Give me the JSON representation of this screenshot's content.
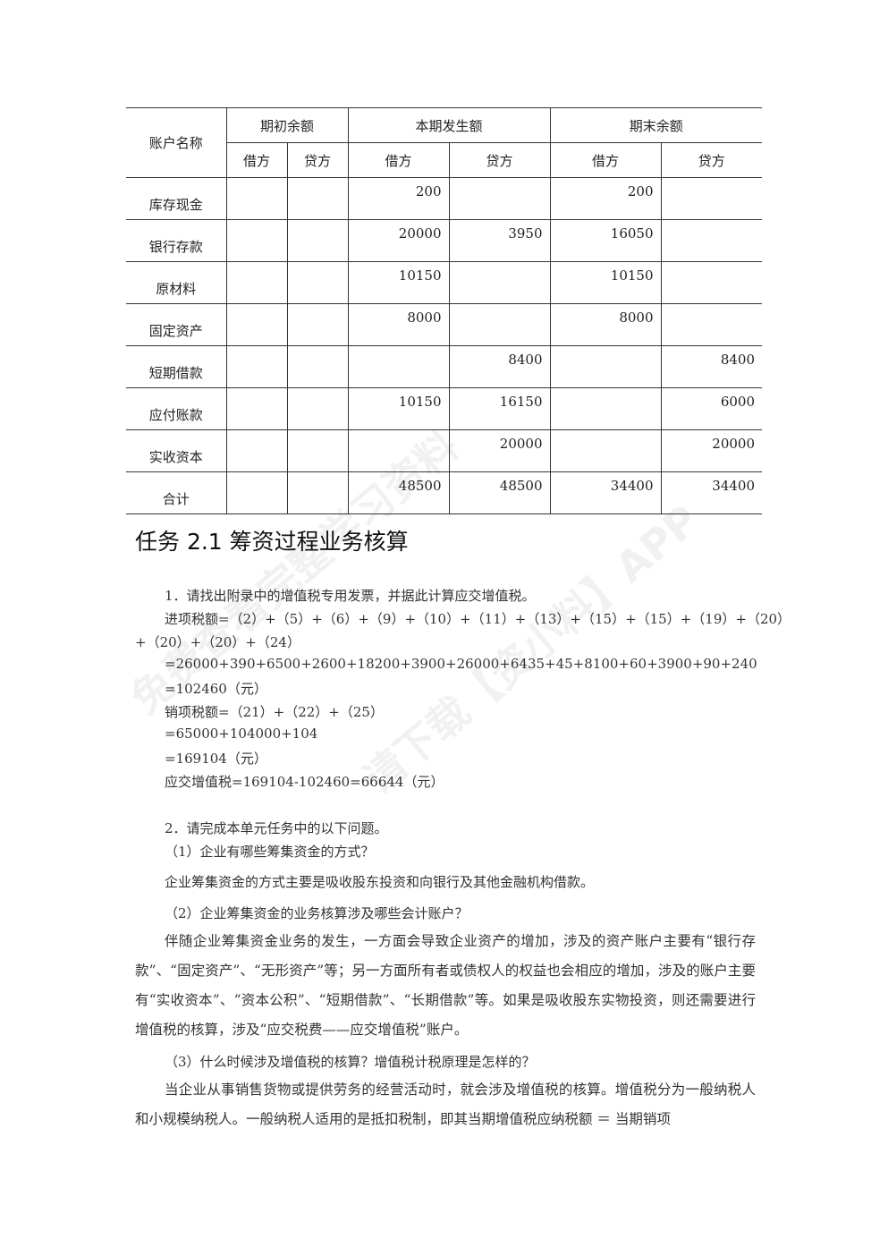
{
  "table": {
    "header": {
      "account": "账户名称",
      "groups": [
        "期初余额",
        "本期发生额",
        "期末余额"
      ],
      "sub": [
        "借方",
        "贷方",
        "借方",
        "贷方",
        "借方",
        "贷方"
      ]
    },
    "rows": [
      {
        "name": "库存现金",
        "cells": [
          "",
          "",
          "200",
          "",
          "200",
          ""
        ]
      },
      {
        "name": "银行存款",
        "cells": [
          "",
          "",
          "20000",
          "3950",
          "16050",
          ""
        ]
      },
      {
        "name": "原材料",
        "cells": [
          "",
          "",
          "10150",
          "",
          "10150",
          ""
        ]
      },
      {
        "name": "固定资产",
        "cells": [
          "",
          "",
          "8000",
          "",
          "8000",
          ""
        ]
      },
      {
        "name": "短期借款",
        "cells": [
          "",
          "",
          "",
          "8400",
          "",
          "8400"
        ]
      },
      {
        "name": "应付账款",
        "cells": [
          "",
          "",
          "10150",
          "16150",
          "",
          "6000"
        ]
      },
      {
        "name": "实收资本",
        "cells": [
          "",
          "",
          "",
          "20000",
          "",
          "20000"
        ]
      },
      {
        "name": "合计",
        "cells": [
          "",
          "",
          "48500",
          "48500",
          "34400",
          "34400"
        ]
      }
    ]
  },
  "section_title": "任务 2.1 筹资过程业务核算",
  "q1": {
    "heading": "1．请找出附录中的增值税专用发票，并据此计算应交增值税。",
    "lines": [
      "进项税额=（2）+（5）+（6）+（9）+（10）+（11）+（13）+（15）+（15）+（19）+（20）",
      "+（20）+（20）+（24）",
      "=26000+390+6500+2600+18200+3900+26000+6435+45+8100+60+3900+90+240",
      "=102460（元）",
      "销项税额=（21）+（22）+（25）",
      "=65000+104000+104",
      "=169104（元）",
      "应交增值税=169104-102460=66644（元）"
    ]
  },
  "q2": {
    "heading": "2．请完成本单元任务中的以下问题。",
    "sub1": "（1）企业有哪些筹集资金的方式？",
    "ans1": "企业筹集资金的方式主要是吸收股东投资和向银行及其他金融机构借款。",
    "sub2": "（2）企业筹集资金的业务核算涉及哪些会计账户？",
    "ans2": "伴随企业筹集资金业务的发生，一方面会导致企业资产的增加，涉及的资产账户主要有“银行存款”、“固定资产”、“无形资产”等；另一方面所有者或债权人的权益也会相应的增加，涉及的账户主要有“实收资本”、“资本公积”、“短期借款”、“长期借款”等。如果是吸收股东实物投资，则还需要进行增值税的核算，涉及“应交税费——应交增值税”账户。",
    "sub3": "（3）什么时候涉及增值税的核算？增值税计税原理是怎样的？",
    "ans3": "当企业从事销售货物或提供劳务的经营活动时，就会涉及增值税的核算。增值税分为一般纳税人和小规模纳税人。一般纳税人适用的是抵扣税制，即其当期增值税应纳税额 ＝ 当期销项"
  },
  "watermark": [
    "免费查看完整学习资料",
    "请下载【资小料】APP"
  ]
}
